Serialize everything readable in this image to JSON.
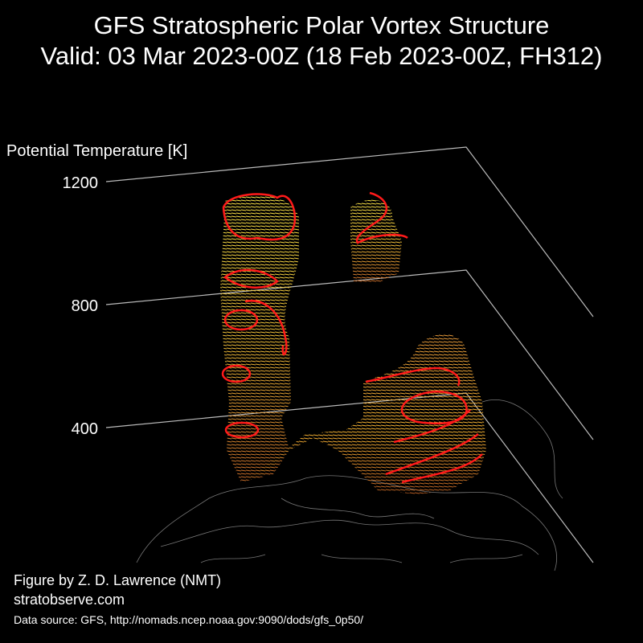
{
  "chart_data": {
    "type": "vortex-3d",
    "title": "GFS Stratospheric Polar Vortex Structure",
    "subtitle": "Valid: 03 Mar 2023-00Z  (18 Feb 2023-00Z, FH312)",
    "zlabel": "Potential Temperature [K]",
    "zlim": [
      400,
      1200
    ],
    "zticks": [
      400,
      800,
      1200
    ],
    "credits": [
      "Figure by Z. D. Lawrence (NMT)",
      "stratobserve.com"
    ],
    "source": "Data source: GFS, http://nomads.ncep.noaa.gov:9090/dods/gfs_0p50/"
  }
}
